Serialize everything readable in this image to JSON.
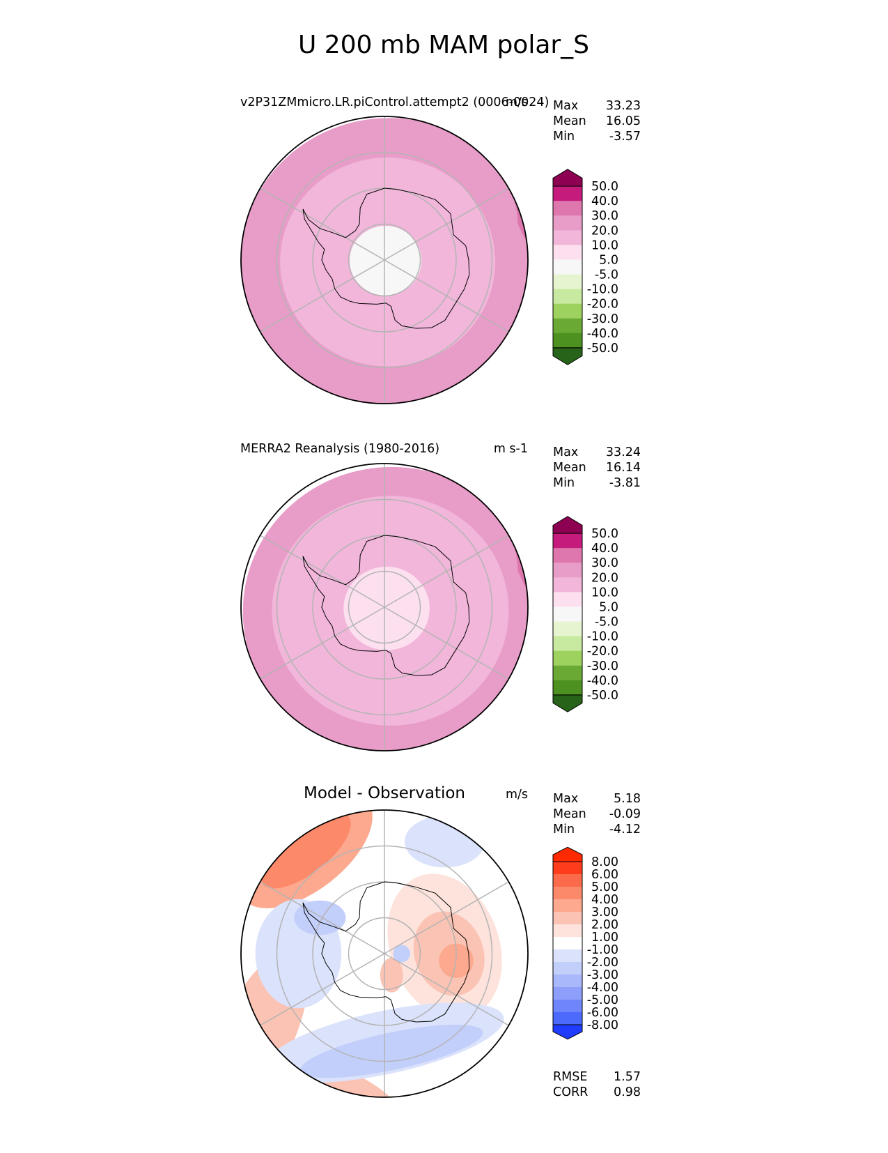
{
  "title": "U 200 mb MAM polar_S",
  "colors": {
    "pos_scale": [
      "#f7f7f7",
      "#fde0ef",
      "#f1b6da",
      "#e89cc8",
      "#de77ae",
      "#c51b7d",
      "#8e0152"
    ],
    "neg_scale": [
      "#f7f7f7",
      "#e6f5d0",
      "#c7e9a0",
      "#9ed25e",
      "#6aaa34",
      "#4d9221",
      "#276419"
    ],
    "diff_pos": [
      "#ffffff",
      "#fde3dc",
      "#fbc3b3",
      "#fca98f",
      "#fc8a6a",
      "#fb6a4a",
      "#ff3d1c",
      "#ff2a00"
    ],
    "diff_neg": [
      "#ffffff",
      "#dbe2fb",
      "#c3cffb",
      "#a9b8fb",
      "#8d9ffb",
      "#6f85fb",
      "#4c6afb",
      "#1f3cff"
    ],
    "grid": "#b4b4b4"
  },
  "chart_data": [
    {
      "type": "polar-contour-map",
      "panel": "model",
      "title_left": "v2P31ZMmicro.LR.piControl.attempt2 (0006-0024)",
      "title_right": "m/s",
      "stats": {
        "labels": [
          "Max",
          "Mean",
          "Min"
        ],
        "values": [
          "33.23",
          "16.05",
          "-3.57"
        ]
      },
      "colorbar": {
        "levels": [
          "50.0",
          "40.0",
          "30.0",
          "20.0",
          "10.0",
          "5.0",
          "-5.0",
          "-10.0",
          "-20.0",
          "-30.0",
          "-40.0",
          "-50.0"
        ],
        "extend": "both"
      },
      "field_rings": [
        {
          "lat": -90,
          "value": 0
        },
        {
          "lat": -80,
          "value": 4
        },
        {
          "lat": -70,
          "value": 12
        },
        {
          "lat": -60,
          "value": 18
        },
        {
          "lat": -50,
          "value": 24
        }
      ]
    },
    {
      "type": "polar-contour-map",
      "panel": "observation",
      "title_left": "MERRA2 Reanalysis (1980-2016)",
      "title_right": "m s-1",
      "stats": {
        "labels": [
          "Max",
          "Mean",
          "Min"
        ],
        "values": [
          "33.24",
          "16.14",
          "-3.81"
        ]
      },
      "colorbar": {
        "levels": [
          "50.0",
          "40.0",
          "30.0",
          "20.0",
          "10.0",
          "5.0",
          "-5.0",
          "-10.0",
          "-20.0",
          "-30.0",
          "-40.0",
          "-50.0"
        ],
        "extend": "both"
      },
      "field_rings": [
        {
          "lat": -90,
          "value": 0
        },
        {
          "lat": -78,
          "value": 6
        },
        {
          "lat": -70,
          "value": 14
        },
        {
          "lat": -57,
          "value": 19
        },
        {
          "lat": -50,
          "value": 24
        }
      ]
    },
    {
      "type": "polar-contour-map",
      "panel": "difference",
      "title_center": "Model - Observation",
      "title_right": "m/s",
      "stats": {
        "labels": [
          "Max",
          "Mean",
          "Min"
        ],
        "values": [
          "5.18",
          "-0.09",
          "-4.12"
        ]
      },
      "colorbar": {
        "levels": [
          "8.00",
          "6.00",
          "5.00",
          "4.00",
          "3.00",
          "2.00",
          "1.00",
          "-1.00",
          "-2.00",
          "-3.00",
          "-4.00",
          "-5.00",
          "-6.00",
          "-8.00"
        ],
        "extend": "both"
      },
      "metrics": {
        "labels": [
          "RMSE",
          "CORR"
        ],
        "values": [
          "1.57",
          "0.98"
        ]
      }
    }
  ]
}
